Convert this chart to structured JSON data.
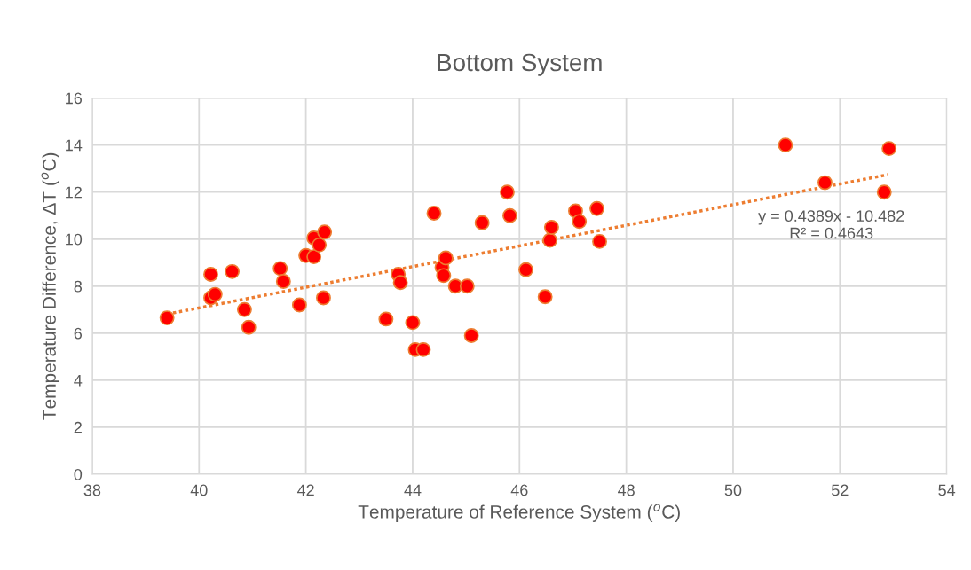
{
  "chart_data": {
    "type": "scatter",
    "title": "Bottom System",
    "xlabel": "Temperature of Reference System ($^{o}$C)",
    "ylabel": "Temperature Difference, ΔT ($^{o}$C)",
    "xlim": [
      38,
      54
    ],
    "xticks": [
      38,
      40,
      42,
      44,
      46,
      48,
      50,
      52,
      54
    ],
    "ylim": [
      0,
      16
    ],
    "yticks": [
      0,
      2,
      4,
      6,
      8,
      10,
      12,
      14,
      16
    ],
    "grid": true,
    "annotations": [
      "y = 0.4389x - 10.482\nR² = 0.4643"
    ],
    "series": [
      {
        "color": "#ff0000",
        "marker": "circle",
        "x": [
          39.4,
          40.22,
          40.22,
          40.3,
          40.62,
          40.85,
          40.93,
          41.52,
          41.58,
          41.88,
          42.0,
          42.15,
          42.15,
          42.25,
          42.35,
          42.33,
          43.5,
          43.73,
          43.77,
          44.0,
          44.05,
          44.2,
          44.4,
          44.55,
          44.58,
          44.62,
          44.8,
          45.02,
          45.1,
          45.3,
          45.77,
          45.82,
          46.12,
          46.48,
          46.57,
          46.6,
          47.05,
          47.12,
          47.45,
          47.5,
          50.98,
          51.72,
          52.83,
          52.92
        ],
        "values": [
          6.65,
          8.5,
          7.5,
          7.65,
          8.62,
          7.0,
          6.25,
          8.75,
          8.2,
          7.2,
          9.3,
          9.25,
          10.05,
          9.75,
          10.3,
          7.5,
          6.6,
          8.5,
          8.15,
          6.45,
          5.3,
          5.3,
          11.1,
          8.8,
          8.45,
          9.2,
          8.0,
          8.0,
          5.9,
          10.7,
          12.0,
          11.0,
          8.7,
          7.55,
          9.95,
          10.5,
          11.2,
          10.75,
          11.3,
          9.9,
          14.0,
          12.4,
          12.0,
          13.85
        ]
      },
      {
        "type": "line",
        "color": "#ed7d31",
        "line_style": "dotted",
        "x": [
          39.4,
          52.9
        ],
        "values": [
          6.81,
          12.74
        ]
      }
    ]
  }
}
